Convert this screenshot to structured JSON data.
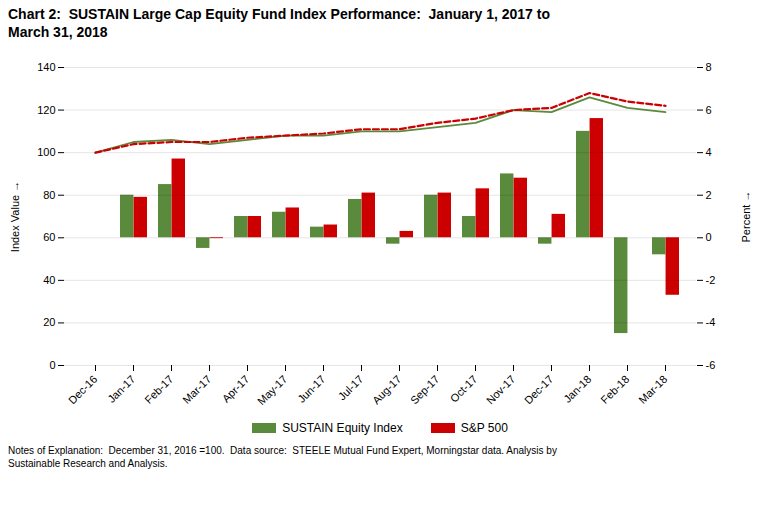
{
  "chart_data": {
    "type": "bar",
    "title": "Chart 2:  SUSTAIN Large Cap Equity Fund Index Performance:  January 1, 2017 to\nMarch 31, 2018",
    "categories": [
      "Dec-16",
      "Jan-17",
      "Feb-17",
      "Mar-17",
      "Apr-17",
      "May-17",
      "Jun-17",
      "Jul-17",
      "Aug-17",
      "Sep-17",
      "Oct-17",
      "Nov-17",
      "Dec-17",
      "Jan-18",
      "Feb-18",
      "Mar-18"
    ],
    "series": [
      {
        "name": "SUSTAIN Equity Index",
        "type": "bar",
        "axis": "y2",
        "color": "#5a8a3c",
        "values": [
          null,
          2.0,
          2.5,
          -0.5,
          1.0,
          1.2,
          0.5,
          1.8,
          -0.3,
          2.0,
          1.0,
          3.0,
          -0.3,
          5.0,
          -4.5,
          -0.8
        ]
      },
      {
        "name": "S&P 500",
        "type": "bar",
        "axis": "y2",
        "color": "#cc0000",
        "values": [
          null,
          1.9,
          3.7,
          -0.04,
          1.0,
          1.4,
          0.6,
          2.1,
          0.3,
          2.1,
          2.3,
          2.8,
          1.1,
          5.6,
          0.0,
          -2.7
        ]
      },
      {
        "name": "SUSTAIN Equity Index",
        "type": "line",
        "color": "#5a8a3c",
        "line_style": "solid",
        "values": [
          100,
          105,
          106,
          104,
          106,
          108,
          108,
          110,
          110,
          112,
          114,
          120,
          119,
          126,
          121,
          119
        ]
      },
      {
        "name": "S&P 500",
        "type": "line",
        "color": "#cc0000",
        "line_style": "dashed",
        "values": [
          100,
          104,
          105,
          105,
          107,
          108,
          109,
          111,
          111,
          114,
          116,
          120,
          121,
          128,
          124,
          122
        ]
      }
    ],
    "ylabel": "Index Value",
    "y2label": "Percent",
    "ylim": [
      0,
      140
    ],
    "yticks": [
      0,
      20,
      40,
      60,
      80,
      100,
      120,
      140
    ],
    "y2lim": [
      -6,
      8
    ],
    "y2ticks": [
      -6,
      -4,
      -2,
      0,
      2,
      4,
      6,
      8
    ],
    "grid": true,
    "legend": "bottom",
    "background_color": "#ffffff",
    "note": "Notes of Explanation:  December 31, 2016 =100.  Data source:  STEELE Mutual Fund Expert, Morningstar data. Analysis by\nSustainable Research and Analysis."
  }
}
